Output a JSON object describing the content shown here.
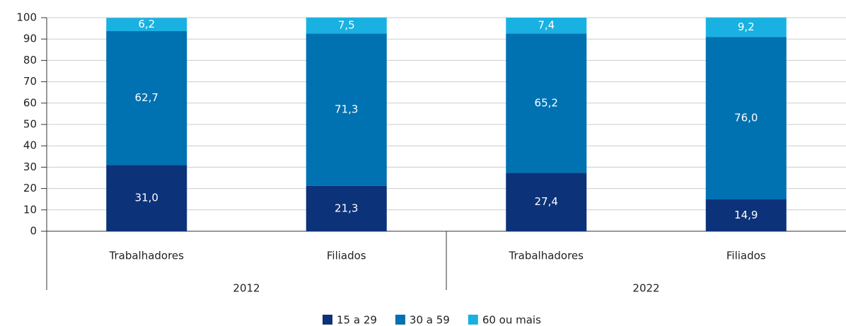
{
  "chart_data": {
    "type": "stacked_bar",
    "categories": [
      "Trabalhadores",
      "Filiados",
      "Trabalhadores",
      "Filiados"
    ],
    "groups": [
      "2012",
      "2022"
    ],
    "series": [
      {
        "name": "15 a 29",
        "color": "#0c3279",
        "values": [
          31.0,
          21.3,
          27.4,
          14.9
        ],
        "value_labels": [
          "31,0",
          "21,3",
          "27,4",
          "14,9"
        ]
      },
      {
        "name": "30 a 59",
        "color": "#0071b1",
        "values": [
          62.7,
          71.3,
          65.2,
          76.0
        ],
        "value_labels": [
          "62,7",
          "71,3",
          "65,2",
          "76,0"
        ]
      },
      {
        "name": "60 ou mais",
        "color": "#19b1e2",
        "values": [
          6.2,
          7.5,
          7.4,
          9.2
        ],
        "value_labels": [
          "6,2",
          "7,5",
          "7,4",
          "9,2"
        ]
      }
    ],
    "ylim": [
      0,
      100
    ],
    "yticks": [
      0,
      10,
      20,
      30,
      40,
      50,
      60,
      70,
      80,
      90,
      100
    ],
    "grid": true,
    "legend": "bottom"
  }
}
